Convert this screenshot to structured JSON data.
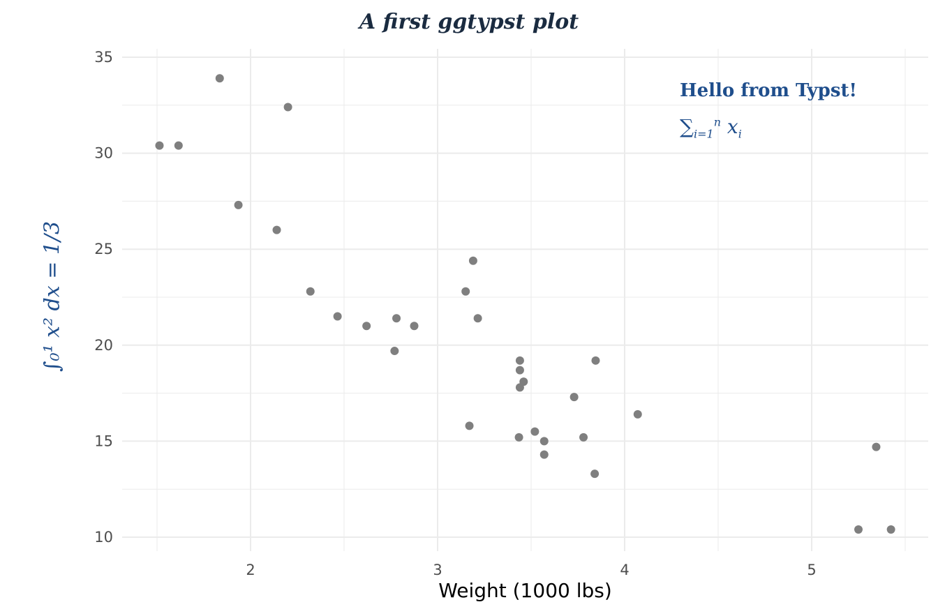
{
  "chart_data": {
    "type": "scatter",
    "title": "A first ggtypst plot",
    "xlabel": "Weight (1000 lbs)",
    "ylabel": "∫₀¹ x² dx = 1/3",
    "ylabel_parts": {
      "integral": "∫",
      "lower": "0",
      "upper": "1",
      "body": "x",
      "exp": "2",
      "dx": " dx = ",
      "num": "1",
      "den": "3"
    },
    "xlim": [
      1.3,
      5.6
    ],
    "ylim": [
      9.4,
      35.5
    ],
    "xticks": [
      2,
      3,
      4,
      5
    ],
    "yticks": [
      10,
      15,
      20,
      25,
      30,
      35
    ],
    "xminor": [
      1.5,
      2.5,
      3.5,
      4.5,
      5.5
    ],
    "yminor": [
      12.5,
      17.5,
      22.5,
      27.5,
      32.5
    ],
    "grid": true,
    "point_color": "#7f7f7f",
    "grid_color": "#ebebeb",
    "annotations": {
      "hello": "Hello from Typst!",
      "sum": {
        "symbol": "∑",
        "sub": "i=1",
        "sup": "n",
        "term": "x",
        "term_sub": "i"
      }
    },
    "x": [
      2.62,
      2.875,
      2.32,
      3.215,
      3.44,
      3.46,
      3.57,
      3.19,
      3.15,
      3.44,
      3.44,
      4.07,
      3.73,
      3.78,
      5.25,
      5.424,
      5.345,
      2.2,
      1.615,
      1.835,
      2.465,
      3.52,
      3.435,
      3.84,
      3.845,
      1.935,
      2.14,
      1.513,
      3.17,
      2.77,
      3.57,
      2.78
    ],
    "y": [
      21.0,
      21.0,
      22.8,
      21.4,
      18.7,
      18.1,
      14.3,
      24.4,
      22.8,
      19.2,
      17.8,
      16.4,
      17.3,
      15.2,
      10.4,
      10.4,
      14.7,
      32.4,
      30.4,
      33.9,
      21.5,
      15.5,
      15.2,
      13.3,
      19.2,
      27.3,
      26.0,
      30.4,
      15.8,
      19.7,
      15.0,
      21.4
    ]
  }
}
